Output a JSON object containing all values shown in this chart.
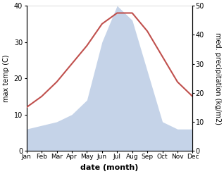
{
  "months": [
    "Jan",
    "Feb",
    "Mar",
    "Apr",
    "May",
    "Jun",
    "Jul",
    "Aug",
    "Sep",
    "Oct",
    "Nov",
    "Dec"
  ],
  "month_indices": [
    1,
    2,
    3,
    4,
    5,
    6,
    7,
    8,
    9,
    10,
    11,
    12
  ],
  "temperature": [
    12,
    15,
    19,
    24,
    29,
    35,
    38,
    38,
    33,
    26,
    19,
    15
  ],
  "precipitation_display": [
    6,
    7,
    8,
    10,
    14,
    30,
    40,
    36,
    22,
    8,
    6,
    6
  ],
  "temp_color": "#c0504d",
  "precip_color": "#c5d3e8",
  "temp_ylim": [
    0,
    40
  ],
  "precip_ylim": [
    0,
    50
  ],
  "temp_yticks": [
    0,
    10,
    20,
    30,
    40
  ],
  "precip_yticks": [
    0,
    10,
    20,
    30,
    40,
    50
  ],
  "xlabel": "date (month)",
  "ylabel_left": "max temp (C)",
  "ylabel_right": "med. precipitation (kg/m2)",
  "background_color": "#ffffff"
}
